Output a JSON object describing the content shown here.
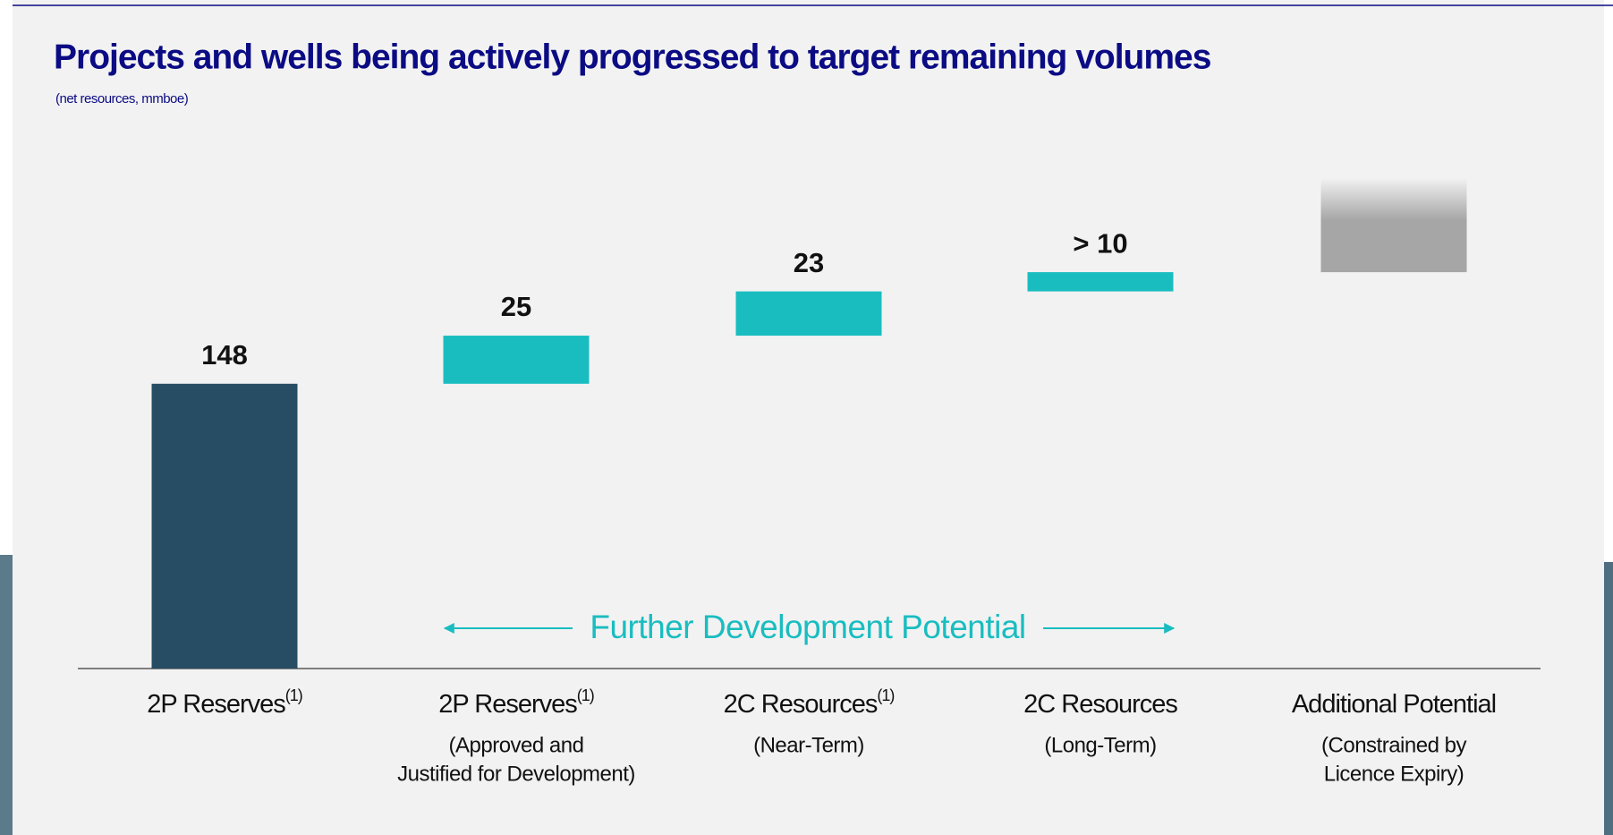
{
  "chart_data": {
    "type": "waterfall",
    "title": "Projects and wells being actively progressed to target remaining volumes",
    "subtitle": "(net resources, mmboe)",
    "categories": [
      "2P Reserves",
      "2P Reserves",
      "2C Resources",
      "2C Resources",
      "Additional Potential"
    ],
    "category_notes": [
      "(1)",
      "(1)",
      "(1)",
      null,
      null
    ],
    "category_sublabels": [
      [],
      [
        "(Approved and",
        "Justified for Development)"
      ],
      [
        "(Near-Term)"
      ],
      [
        "(Long-Term)"
      ],
      [
        "(Constrained by",
        "Licence Expiry)"
      ]
    ],
    "values": [
      148,
      25,
      23,
      10,
      49
    ],
    "value_labels": [
      "148",
      "25",
      "23",
      "> 10",
      null
    ],
    "colors": [
      "#264d63",
      "#19bdc0",
      "#19bdc0",
      "#19bdc0",
      "#a6a6a6"
    ],
    "faded": [
      false,
      false,
      false,
      false,
      true
    ],
    "annotation": "Further Development Potential",
    "annotation_color": "#19bdc0"
  }
}
